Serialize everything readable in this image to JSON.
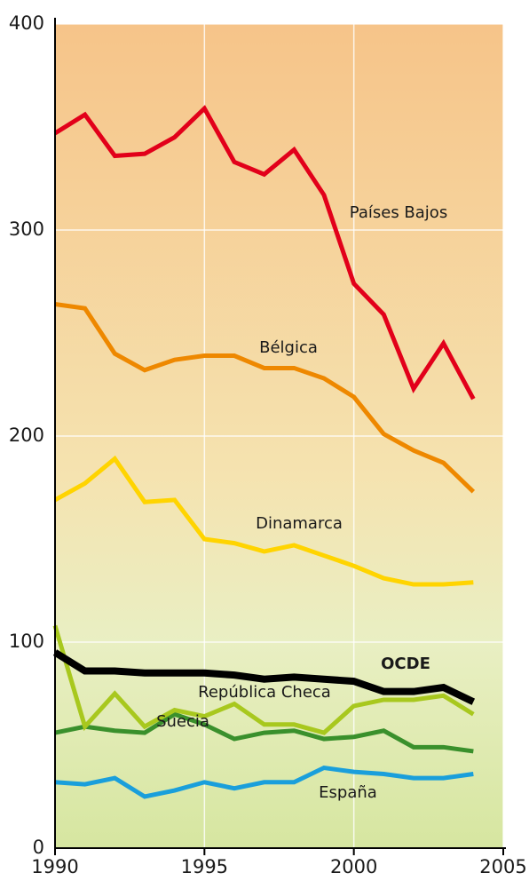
{
  "chart_data": {
    "type": "line",
    "x": [
      1990,
      1991,
      1992,
      1993,
      1994,
      1995,
      1996,
      1997,
      1998,
      1999,
      2000,
      2001,
      2002,
      2003,
      2004
    ],
    "series": [
      {
        "name": "Países Bajos",
        "color": "#e2001a",
        "values": [
          347,
          356,
          336,
          337,
          345,
          359,
          333,
          327,
          339,
          317,
          274,
          259,
          223,
          245,
          218
        ]
      },
      {
        "name": "Bélgica",
        "color": "#ee8800",
        "values": [
          264,
          262,
          240,
          232,
          237,
          239,
          239,
          233,
          233,
          228,
          219,
          201,
          193,
          187,
          173
        ]
      },
      {
        "name": "Dinamarca",
        "color": "#ffd400",
        "values": [
          169,
          177,
          189,
          168,
          169,
          150,
          148,
          144,
          147,
          142,
          137,
          131,
          128,
          128,
          129
        ]
      },
      {
        "name": "OCDE",
        "color": "#000000",
        "values": [
          95,
          86,
          86,
          85,
          85,
          85,
          84,
          82,
          83,
          82,
          81,
          76,
          76,
          78,
          71
        ]
      },
      {
        "name": "República Checa",
        "color": "#a8c81e",
        "values": [
          108,
          59,
          75,
          59,
          67,
          64,
          70,
          60,
          60,
          56,
          69,
          72,
          72,
          74,
          65
        ]
      },
      {
        "name": "Suecia",
        "color": "#3a902c",
        "values": [
          56,
          59,
          57,
          56,
          65,
          60,
          53,
          56,
          57,
          53,
          54,
          57,
          49,
          49,
          47
        ]
      },
      {
        "name": "España",
        "color": "#1a9fdb",
        "values": [
          32,
          31,
          34,
          25,
          28,
          32,
          29,
          32,
          32,
          39,
          37,
          36,
          34,
          34,
          36
        ]
      }
    ],
    "xlim": [
      1990,
      2005
    ],
    "xticks": [
      1990,
      1995,
      2000,
      2005
    ],
    "ylim": [
      0,
      400
    ],
    "yticks": [
      0,
      100,
      200,
      300,
      400
    ],
    "grid": true
  }
}
